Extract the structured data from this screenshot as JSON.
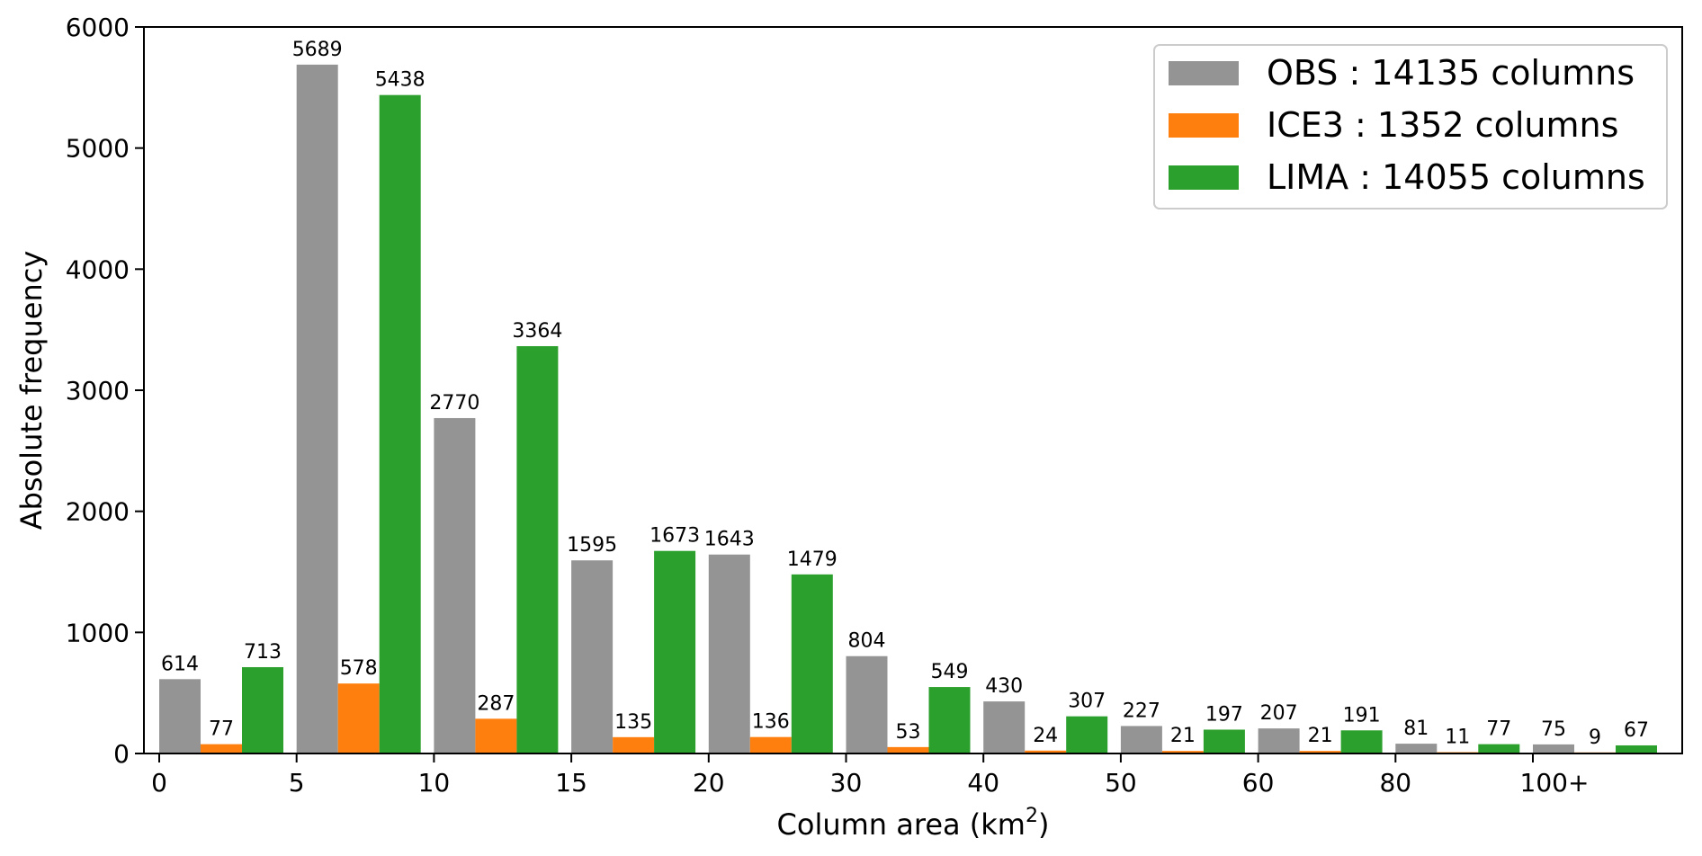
{
  "chart_data": {
    "type": "bar",
    "categories": [
      "0",
      "5",
      "10",
      "15",
      "20",
      "30",
      "40",
      "50",
      "60",
      "80",
      "100+"
    ],
    "series": [
      {
        "name": "OBS",
        "color": "#949494",
        "values": [
          614,
          5689,
          2770,
          1595,
          1643,
          804,
          430,
          227,
          207,
          81,
          75
        ]
      },
      {
        "name": "ICE3",
        "color": "#ff7f0e",
        "values": [
          77,
          578,
          287,
          135,
          136,
          53,
          24,
          21,
          21,
          11,
          9
        ]
      },
      {
        "name": "LIMA",
        "color": "#2ca02c",
        "values": [
          713,
          5438,
          3364,
          1673,
          1479,
          549,
          307,
          197,
          191,
          77,
          67
        ]
      }
    ],
    "xlabel": "Column area (km",
    "xlabel_superscript": "2",
    "xlabel_suffix": ")",
    "ylabel": "Absolute frequency",
    "ylim": [
      0,
      6000
    ],
    "yticks": [
      0,
      1000,
      2000,
      3000,
      4000,
      5000,
      6000
    ],
    "legend": {
      "position": "top-right",
      "entries": [
        {
          "name": "OBS",
          "text": " : 14135 columns"
        },
        {
          "name": "ICE3",
          "text": " : 1352 columns"
        },
        {
          "name": "LIMA",
          "text": " : 14055 columns"
        }
      ]
    },
    "grid": false
  }
}
